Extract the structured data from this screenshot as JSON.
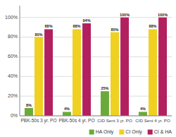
{
  "chart_data": {
    "type": "bar",
    "categories": [
      "PBK-50s 3 yr. PO",
      "PBK-50s 4 yr. PO",
      "CID Sent 3 yr. PO",
      "CID Sent 4 yr. PO"
    ],
    "series": [
      {
        "name": "HA Only",
        "color": "#6aaa3a",
        "values": [
          8,
          4,
          25,
          4
        ],
        "value_labels": [
          "8%",
          "4%",
          "25%",
          "4%"
        ]
      },
      {
        "name": "CI Only",
        "color": "#f0d020",
        "values": [
          80,
          88,
          85,
          88
        ],
        "value_labels": [
          "80%",
          "88%",
          "85%",
          "88%"
        ]
      },
      {
        "name": "CI & HA",
        "color": "#b22060",
        "values": [
          88,
          94,
          100,
          100
        ],
        "value_labels": [
          "88%",
          "94%",
          "100%",
          "100%"
        ]
      }
    ],
    "ylim": [
      0,
      112
    ],
    "yticks": [
      {
        "value": 0,
        "label": "0%"
      },
      {
        "value": 20,
        "label": "20%"
      },
      {
        "value": 40,
        "label": "40%"
      },
      {
        "value": 60,
        "label": "60%"
      },
      {
        "value": 80,
        "label": "80%"
      },
      {
        "value": 100,
        "label": "100%"
      }
    ],
    "grid": true,
    "legend": "lower right",
    "data_labels": true
  }
}
